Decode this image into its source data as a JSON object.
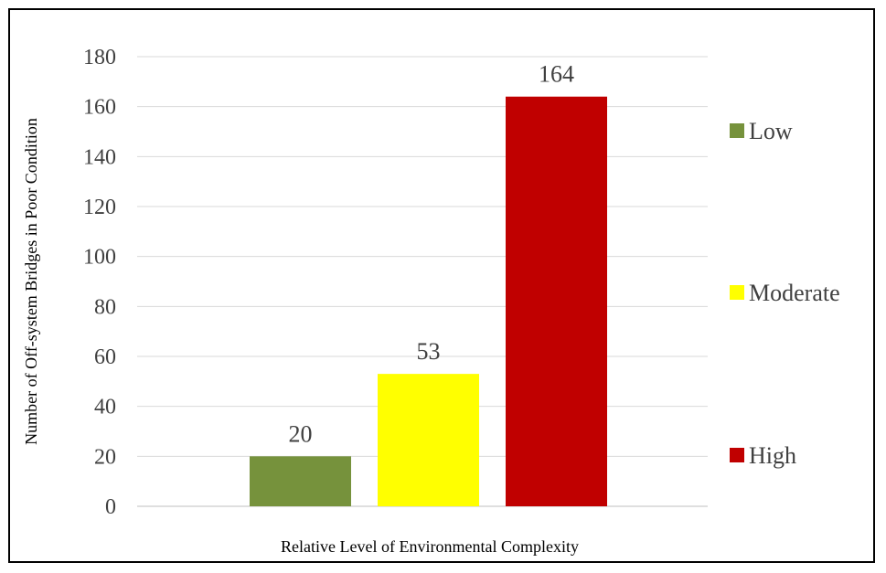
{
  "chart_data": {
    "type": "bar",
    "categories": [
      "Low",
      "Moderate",
      "High"
    ],
    "values": [
      20,
      53,
      164
    ],
    "colors": [
      "#76923c",
      "#ffff00",
      "#c00000"
    ],
    "data_labels": [
      "20",
      "53",
      "164"
    ],
    "xlabel": "Relative Level of Environmental Complexity",
    "ylabel": "Number of Off-system Bridges in Poor Condition",
    "ylim": [
      0,
      180
    ],
    "yticks": [
      0,
      20,
      40,
      60,
      80,
      100,
      120,
      140,
      160,
      180
    ],
    "grid": true,
    "legend_position": "right",
    "legend": [
      "Low",
      "Moderate",
      "High"
    ]
  }
}
